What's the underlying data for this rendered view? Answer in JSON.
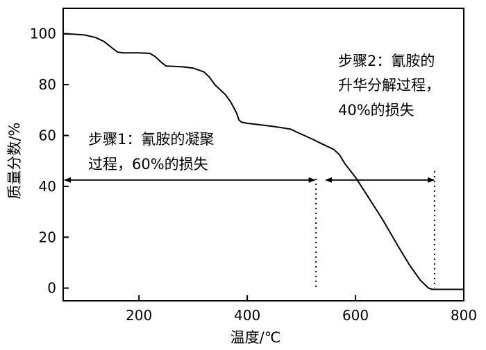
{
  "chart_data": {
    "type": "line",
    "xlabel": "温度/℃",
    "ylabel": "质量分数/%",
    "xlim": [
      60,
      800
    ],
    "ylim": [
      -5,
      110
    ],
    "x_ticks": [
      200,
      400,
      600,
      800
    ],
    "y_ticks": [
      0,
      20,
      40,
      60,
      80,
      100
    ],
    "grid": false,
    "series": [
      {
        "x": [
          60,
          80,
          100,
          120,
          135,
          150,
          160,
          170,
          200,
          220,
          230,
          240,
          250,
          280,
          300,
          320,
          330,
          340,
          360,
          370,
          380,
          385,
          390,
          400,
          420,
          450,
          480,
          490,
          500,
          520,
          540,
          560,
          570,
          580,
          600,
          620,
          650,
          680,
          700,
          720,
          735,
          742,
          750,
          760,
          800
        ],
        "y": [
          100,
          99.8,
          99.5,
          98.5,
          97,
          94.5,
          92.8,
          92.5,
          92.5,
          92.3,
          91,
          89,
          87.3,
          87,
          86.5,
          85,
          83,
          80,
          76,
          73,
          69,
          66,
          65.2,
          64.8,
          64.3,
          63.5,
          62.5,
          61.5,
          60.5,
          58.6,
          56.5,
          54.5,
          52.5,
          49,
          43.5,
          37,
          27,
          16,
          9,
          3,
          0,
          -0.5,
          -0.5,
          -0.5,
          -0.5
        ]
      }
    ],
    "annotations": {
      "step1_line1": "步骤1：氰胺的凝聚",
      "step1_line2": "过程，60%的损失",
      "step2_line1": "步骤2：氰胺的",
      "step2_line2": "升华分解过程，",
      "step2_line3": "40%的损失"
    },
    "markers": {
      "step1_range": [
        60,
        525
      ],
      "step2_range": [
        545,
        745
      ],
      "dotted_lines_x": [
        527,
        746
      ]
    }
  }
}
